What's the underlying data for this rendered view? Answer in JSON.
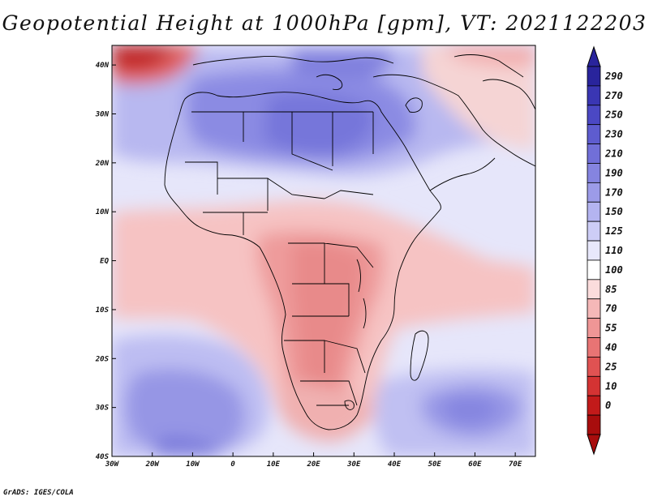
{
  "title": "Geopotential Height at 1000hPa [gpm], VT: 2021122203",
  "footer": "GrADS: IGES/COLA",
  "map": {
    "region": "Africa",
    "lon_ticks": [
      "30W",
      "20W",
      "10W",
      "0",
      "10E",
      "20E",
      "30E",
      "40E",
      "50E",
      "60E",
      "70E"
    ],
    "lat_ticks": [
      "40N",
      "30N",
      "20N",
      "10N",
      "EQ",
      "10S",
      "20S",
      "30S",
      "40S"
    ],
    "lon_range": [
      -30,
      75
    ],
    "lat_range": [
      -40,
      44
    ]
  },
  "colorbar": {
    "labels": [
      "290",
      "270",
      "250",
      "230",
      "210",
      "190",
      "170",
      "150",
      "125",
      "110",
      "100",
      "85",
      "70",
      "55",
      "40",
      "25",
      "10",
      "0"
    ],
    "colors_top_to_bottom": [
      "#29249c",
      "#3a36b3",
      "#4b48c4",
      "#5e5ccf",
      "#716fd8",
      "#8584e0",
      "#9c9be8",
      "#b4b4f0",
      "#cdcdf6",
      "#e8e8fb",
      "#ffffff",
      "#fbdcdc",
      "#f5b8b8",
      "#ef9696",
      "#e87474",
      "#e05252",
      "#d43333",
      "#c21a1a",
      "#a80d0d"
    ],
    "arrow_top_color": "#29249c",
    "arrow_bottom_color": "#a80d0d"
  },
  "colors": {
    "ocean_bg": "#ebebfc",
    "high_blue": "#8f8fe6",
    "low_red": "#f2a9a9"
  }
}
